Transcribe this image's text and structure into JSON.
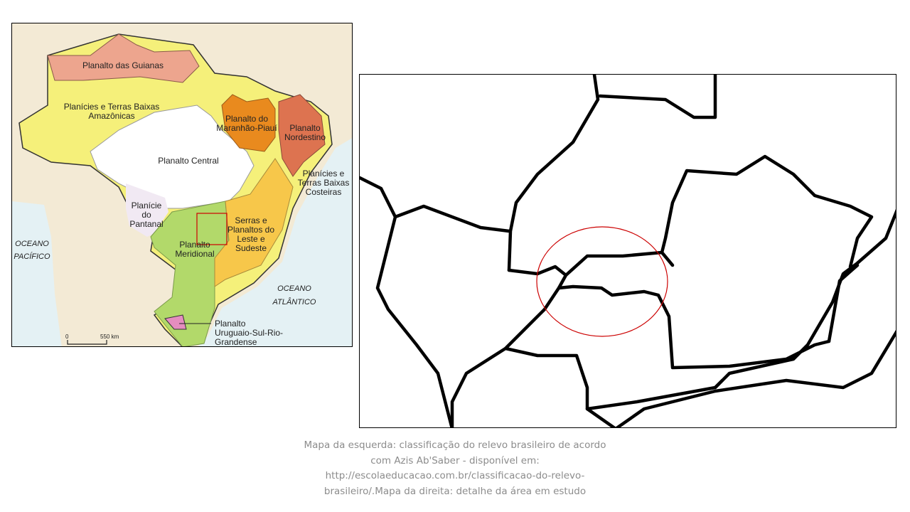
{
  "left_map": {
    "labels": {
      "guianas": "Planalto das Guianas",
      "amazonicas_1": "Planícies e Terras Baixas",
      "amazonicas_2": "Amazônicas",
      "maranhao_1": "Planalto do",
      "maranhao_2": "Maranhão-Piauí",
      "nordestino_1": "Planalto",
      "nordestino_2": "Nordestino",
      "central": "Planalto Central",
      "costeiras_1": "Planícies e",
      "costeiras_2": "Terras Baixas",
      "costeiras_3": "Costeiras",
      "pantanal_1": "Planície",
      "pantanal_2": "do",
      "pantanal_3": "Pantanal",
      "serras_1": "Serras e",
      "serras_2": "Planaltos do",
      "serras_3": "Leste e",
      "serras_4": "Sudeste",
      "meridional_1": "Planalto",
      "meridional_2": "Meridional",
      "uruguaio_1": "Planalto",
      "uruguaio_2": "Uruguaio-Sul-Rio-",
      "uruguaio_3": "Grandense",
      "pacifico_1": "OCEANO",
      "pacifico_2": "PACÍFICO",
      "atlantico_1": "OCEANO",
      "atlantico_2": "ATLÂNTICO",
      "scale_start": "0",
      "scale_end": "550 km"
    },
    "colors": {
      "guianas": "#eda58e",
      "amazonicas": "#f5f07a",
      "central": "#ffffff",
      "maranhao": "#e98a1e",
      "nordestino": "#dd7350",
      "pantanal": "#f1e9f3",
      "serras": "#f7c74a",
      "meridional": "#b2d96a",
      "uruguaio": "#e58dbf",
      "land_other": "#f3ead5",
      "ocean": "#e4f1f4",
      "highlight_box": "#cc0000"
    }
  },
  "right_map": {
    "highlight_color": "#cc0000"
  },
  "caption": {
    "line1": "Mapa da esquerda: classificação do relevo brasileiro de acordo",
    "line2": "com  Azis Ab'Saber - disponível em:",
    "line3": "http://escolaeducacao.com.br/classificacao-do-relevo-",
    "line4": "brasileiro/.Mapa da direita: detalhe da área em estudo"
  }
}
